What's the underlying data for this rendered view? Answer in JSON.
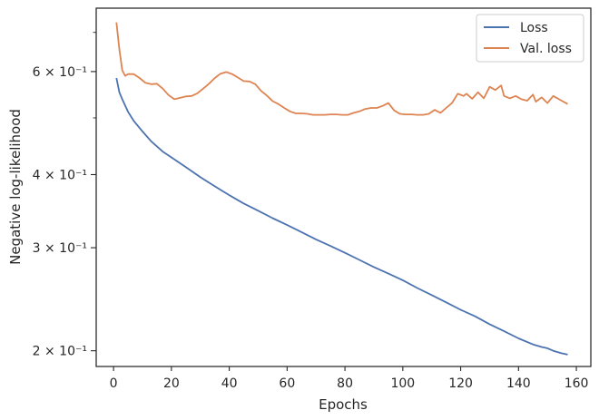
{
  "chart_data": {
    "type": "line",
    "title": "",
    "xlabel": "Epochs",
    "ylabel": "Negative log-likelihood",
    "y_scale": "log",
    "xlim": [
      -6,
      165
    ],
    "ylim": [
      0.188,
      0.77
    ],
    "x_ticks": [
      0,
      20,
      40,
      60,
      80,
      100,
      120,
      140,
      160
    ],
    "y_major_ticks": [
      {
        "value": 0.2,
        "label": "2 × 10⁻¹"
      },
      {
        "value": 0.3,
        "label": "3 × 10⁻¹"
      },
      {
        "value": 0.4,
        "label": "4 × 10⁻¹"
      },
      {
        "value": 0.6,
        "label": "6 × 10⁻¹"
      }
    ],
    "y_minor_ticks": [
      0.5,
      0.7
    ],
    "grid": false,
    "legend": {
      "placement": "top-right"
    },
    "series": [
      {
        "name": "Loss",
        "color": "#4c72b0",
        "points": [
          [
            1,
            0.585
          ],
          [
            2,
            0.553
          ],
          [
            3,
            0.538
          ],
          [
            5,
            0.512
          ],
          [
            7,
            0.494
          ],
          [
            10,
            0.474
          ],
          [
            13,
            0.456
          ],
          [
            17,
            0.438
          ],
          [
            20,
            0.428
          ],
          [
            25,
            0.412
          ],
          [
            30,
            0.396
          ],
          [
            35,
            0.382
          ],
          [
            40,
            0.369
          ],
          [
            45,
            0.357
          ],
          [
            50,
            0.347
          ],
          [
            55,
            0.337
          ],
          [
            60,
            0.328
          ],
          [
            65,
            0.319
          ],
          [
            70,
            0.31
          ],
          [
            75,
            0.302
          ],
          [
            80,
            0.294
          ],
          [
            85,
            0.286
          ],
          [
            90,
            0.278
          ],
          [
            95,
            0.271
          ],
          [
            100,
            0.264
          ],
          [
            105,
            0.256
          ],
          [
            110,
            0.249
          ],
          [
            115,
            0.242
          ],
          [
            120,
            0.235
          ],
          [
            125,
            0.229
          ],
          [
            130,
            0.222
          ],
          [
            135,
            0.216
          ],
          [
            140,
            0.21
          ],
          [
            145,
            0.205
          ],
          [
            148,
            0.203
          ],
          [
            150,
            0.202
          ],
          [
            152,
            0.2
          ],
          [
            155,
            0.198
          ],
          [
            157,
            0.197
          ]
        ]
      },
      {
        "name": "Val. loss",
        "color": "#dd8452",
        "points": [
          [
            1,
            0.728
          ],
          [
            2,
            0.655
          ],
          [
            3,
            0.603
          ],
          [
            4,
            0.59
          ],
          [
            5,
            0.594
          ],
          [
            7,
            0.594
          ],
          [
            9,
            0.585
          ],
          [
            11,
            0.574
          ],
          [
            13,
            0.571
          ],
          [
            15,
            0.572
          ],
          [
            17,
            0.561
          ],
          [
            19,
            0.547
          ],
          [
            21,
            0.538
          ],
          [
            23,
            0.541
          ],
          [
            25,
            0.544
          ],
          [
            27,
            0.545
          ],
          [
            29,
            0.551
          ],
          [
            31,
            0.561
          ],
          [
            33,
            0.572
          ],
          [
            35,
            0.585
          ],
          [
            37,
            0.595
          ],
          [
            39,
            0.599
          ],
          [
            41,
            0.594
          ],
          [
            43,
            0.586
          ],
          [
            45,
            0.578
          ],
          [
            47,
            0.577
          ],
          [
            49,
            0.571
          ],
          [
            51,
            0.556
          ],
          [
            53,
            0.546
          ],
          [
            55,
            0.534
          ],
          [
            57,
            0.528
          ],
          [
            59,
            0.52
          ],
          [
            61,
            0.513
          ],
          [
            63,
            0.509
          ],
          [
            65,
            0.509
          ],
          [
            67,
            0.508
          ],
          [
            69,
            0.506
          ],
          [
            71,
            0.506
          ],
          [
            73,
            0.506
          ],
          [
            75,
            0.507
          ],
          [
            77,
            0.507
          ],
          [
            79,
            0.506
          ],
          [
            81,
            0.506
          ],
          [
            83,
            0.51
          ],
          [
            85,
            0.513
          ],
          [
            87,
            0.518
          ],
          [
            89,
            0.52
          ],
          [
            91,
            0.52
          ],
          [
            93,
            0.524
          ],
          [
            95,
            0.53
          ],
          [
            97,
            0.515
          ],
          [
            99,
            0.508
          ],
          [
            101,
            0.507
          ],
          [
            103,
            0.507
          ],
          [
            105,
            0.506
          ],
          [
            107,
            0.506
          ],
          [
            109,
            0.508
          ],
          [
            111,
            0.516
          ],
          [
            113,
            0.51
          ],
          [
            115,
            0.52
          ],
          [
            117,
            0.53
          ],
          [
            119,
            0.55
          ],
          [
            121,
            0.545
          ],
          [
            122,
            0.55
          ],
          [
            124,
            0.539
          ],
          [
            126,
            0.553
          ],
          [
            128,
            0.54
          ],
          [
            130,
            0.565
          ],
          [
            132,
            0.558
          ],
          [
            134,
            0.568
          ],
          [
            135,
            0.545
          ],
          [
            137,
            0.54
          ],
          [
            139,
            0.545
          ],
          [
            141,
            0.538
          ],
          [
            143,
            0.535
          ],
          [
            145,
            0.548
          ],
          [
            146,
            0.533
          ],
          [
            148,
            0.542
          ],
          [
            150,
            0.53
          ],
          [
            152,
            0.545
          ],
          [
            154,
            0.538
          ],
          [
            157,
            0.528
          ]
        ]
      }
    ]
  }
}
